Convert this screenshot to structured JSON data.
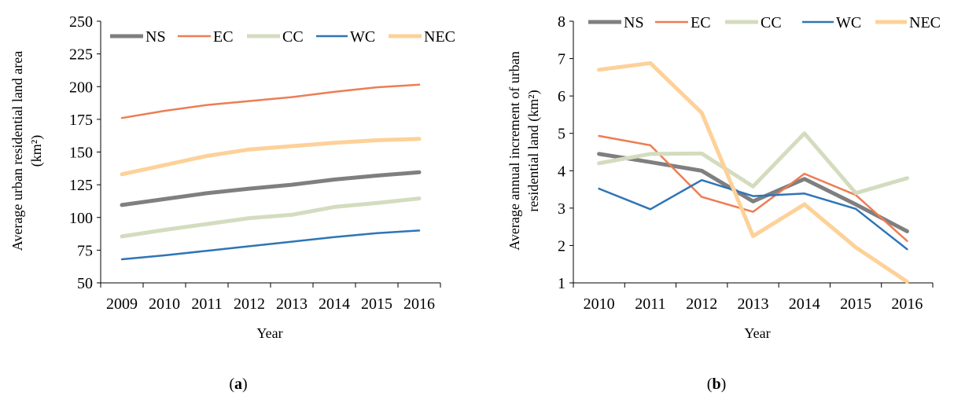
{
  "chart_data": [
    {
      "type": "line",
      "xlabel": "Year",
      "ylabel": "Average urban residential land area (km²)",
      "ylabel_line1": "Average urban residential land area",
      "ylabel_line2": "(km²)",
      "ylim": [
        50,
        250
      ],
      "yticks": [
        50,
        75,
        100,
        125,
        150,
        175,
        200,
        225,
        250
      ],
      "ytick_labels": [
        "50",
        "75",
        "100",
        "125",
        "150",
        "175",
        "200",
        "225",
        "250"
      ],
      "x": [
        "2009",
        "2010",
        "2011",
        "2012",
        "2013",
        "2014",
        "2015",
        "2016"
      ],
      "grid": false,
      "legend_position": "top",
      "series": [
        {
          "name": "NS",
          "color": "#7f7f7f",
          "width": 5,
          "values": [
            109.5,
            114,
            118.5,
            122,
            125,
            129,
            132,
            134.5
          ]
        },
        {
          "name": "EC",
          "color": "#ed7d54",
          "width": 2.5,
          "values": [
            176,
            181.5,
            186,
            189,
            192,
            196,
            199.5,
            201.5
          ]
        },
        {
          "name": "CC",
          "color": "#d4dcbf",
          "width": 5,
          "values": [
            85.5,
            90.5,
            95,
            99.5,
            102,
            108,
            111,
            114.5
          ]
        },
        {
          "name": "WC",
          "color": "#2e75b6",
          "width": 2.5,
          "values": [
            68,
            71,
            74.5,
            78,
            81.5,
            85,
            88,
            90
          ]
        },
        {
          "name": "NEC",
          "color": "#fdd198",
          "width": 5,
          "values": [
            133,
            140,
            147,
            152,
            154.5,
            157,
            159,
            160
          ]
        }
      ],
      "panel_label": "(a)",
      "panel_letter": "a"
    },
    {
      "type": "line",
      "xlabel": "Year",
      "ylabel": "Average annual increment of urban residential land (km²)",
      "ylabel_line1": "Average annual increment of urban",
      "ylabel_line2": "residential land (km²)",
      "ylim": [
        1,
        8
      ],
      "yticks": [
        1,
        2,
        3,
        4,
        5,
        6,
        7,
        8
      ],
      "ytick_labels": [
        "1",
        "2",
        "3",
        "4",
        "5",
        "6",
        "7",
        "8"
      ],
      "x": [
        "2010",
        "2011",
        "2012",
        "2013",
        "2014",
        "2015",
        "2016"
      ],
      "grid": false,
      "legend_position": "top",
      "series": [
        {
          "name": "NS",
          "color": "#7f7f7f",
          "width": 5,
          "values": [
            4.45,
            4.23,
            4.0,
            3.18,
            3.78,
            3.1,
            2.38
          ]
        },
        {
          "name": "EC",
          "color": "#ed7d54",
          "width": 2.5,
          "values": [
            4.93,
            4.68,
            3.3,
            2.9,
            3.92,
            3.35,
            2.12
          ]
        },
        {
          "name": "CC",
          "color": "#d4dcbf",
          "width": 5,
          "values": [
            4.2,
            4.45,
            4.46,
            3.58,
            5.0,
            3.4,
            3.8
          ]
        },
        {
          "name": "WC",
          "color": "#2e75b6",
          "width": 2.5,
          "values": [
            3.52,
            2.97,
            3.75,
            3.32,
            3.39,
            2.98,
            1.9
          ]
        },
        {
          "name": "NEC",
          "color": "#fdd198",
          "width": 5,
          "values": [
            6.7,
            6.88,
            5.55,
            2.25,
            3.1,
            1.95,
            1.03
          ]
        }
      ],
      "panel_label": "(b)",
      "panel_letter": "b"
    }
  ]
}
